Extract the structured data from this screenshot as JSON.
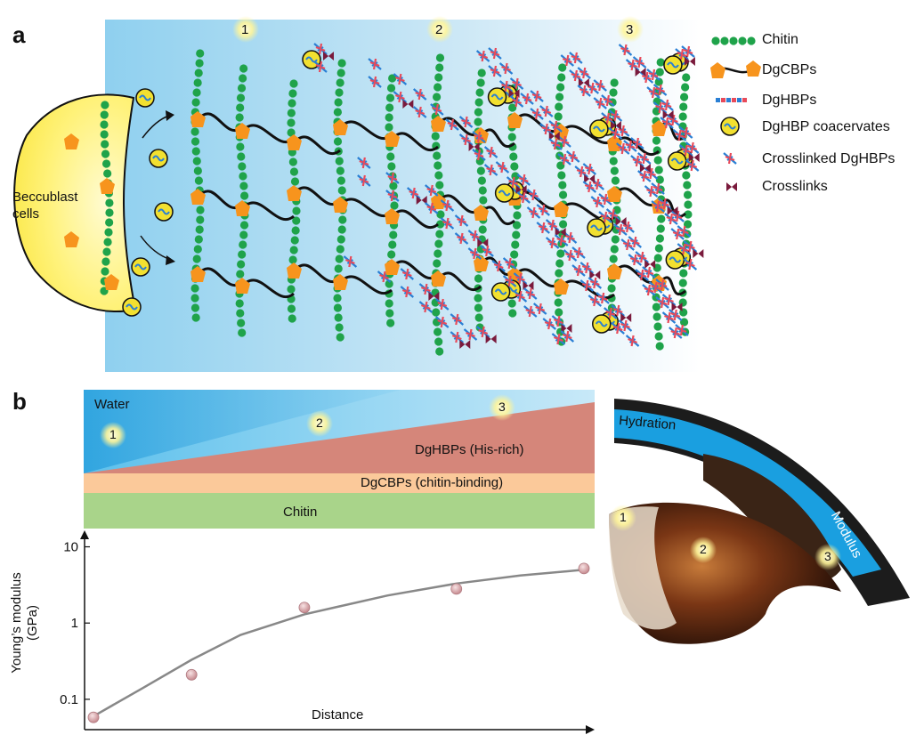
{
  "panel_a": {
    "label": "a",
    "cells_label_line1": "Beccublast",
    "cells_label_line2": "cells",
    "stage_markers": [
      "1",
      "2",
      "3"
    ],
    "legend": [
      {
        "icon": "chitin-chain-icon",
        "label": "Chitin"
      },
      {
        "icon": "dgcbp-icon",
        "label": "DgCBPs"
      },
      {
        "icon": "dghbp-icon",
        "label": "DgHBPs"
      },
      {
        "icon": "coacervate-icon",
        "label": "DgHBP coacervates"
      },
      {
        "icon": "crosslinked-dghbp-icon",
        "label": "Crosslinked DgHBPs"
      },
      {
        "icon": "crosslink-icon",
        "label": "Crosslinks"
      }
    ],
    "colors": {
      "chitin": "#1fa34a",
      "dgcbp": "#f7941d",
      "coacervate": "#f2e030",
      "dghbp": "#2a7fd4",
      "crosslink": "#7a1a3c",
      "background_left": "#8fd0ef"
    }
  },
  "panel_b": {
    "label": "b",
    "layers": {
      "water": "Water",
      "dghbps": "DgHBPs (His-rich)",
      "dgcbps": "DgCBPs (chitin-binding)",
      "chitin": "Chitin"
    },
    "stage_markers": [
      "1",
      "2",
      "3"
    ],
    "beak_labels": {
      "hydration": "Hydration",
      "modulus": "Modulus"
    },
    "colors": {
      "water": "#1ba1e2",
      "dghbps": "#d5867a",
      "dgcbps": "#fbc99a",
      "chitin": "#a9d48a"
    }
  },
  "chart_data": {
    "type": "scatter",
    "ylabel_line1": "Young’s modulus",
    "ylabel_line2": "(GPa)",
    "xlabel": "Distance",
    "y_scale": "log",
    "y_ticks": [
      "0.1",
      "1",
      "10"
    ],
    "y_tick_values": [
      0.1,
      1,
      10
    ],
    "points": [
      {
        "x": 0.0,
        "y": 0.058
      },
      {
        "x": 0.2,
        "y": 0.21
      },
      {
        "x": 0.43,
        "y": 1.6
      },
      {
        "x": 0.74,
        "y": 2.8
      },
      {
        "x": 1.0,
        "y": 5.2
      }
    ],
    "fit_curve": [
      {
        "x": 0.0,
        "y": 0.06
      },
      {
        "x": 0.1,
        "y": 0.14
      },
      {
        "x": 0.2,
        "y": 0.33
      },
      {
        "x": 0.3,
        "y": 0.7
      },
      {
        "x": 0.43,
        "y": 1.3
      },
      {
        "x": 0.6,
        "y": 2.3
      },
      {
        "x": 0.74,
        "y": 3.3
      },
      {
        "x": 0.87,
        "y": 4.2
      },
      {
        "x": 1.0,
        "y": 5.0
      }
    ],
    "point_color": "#d9a5a8",
    "curve_color": "#888888"
  }
}
